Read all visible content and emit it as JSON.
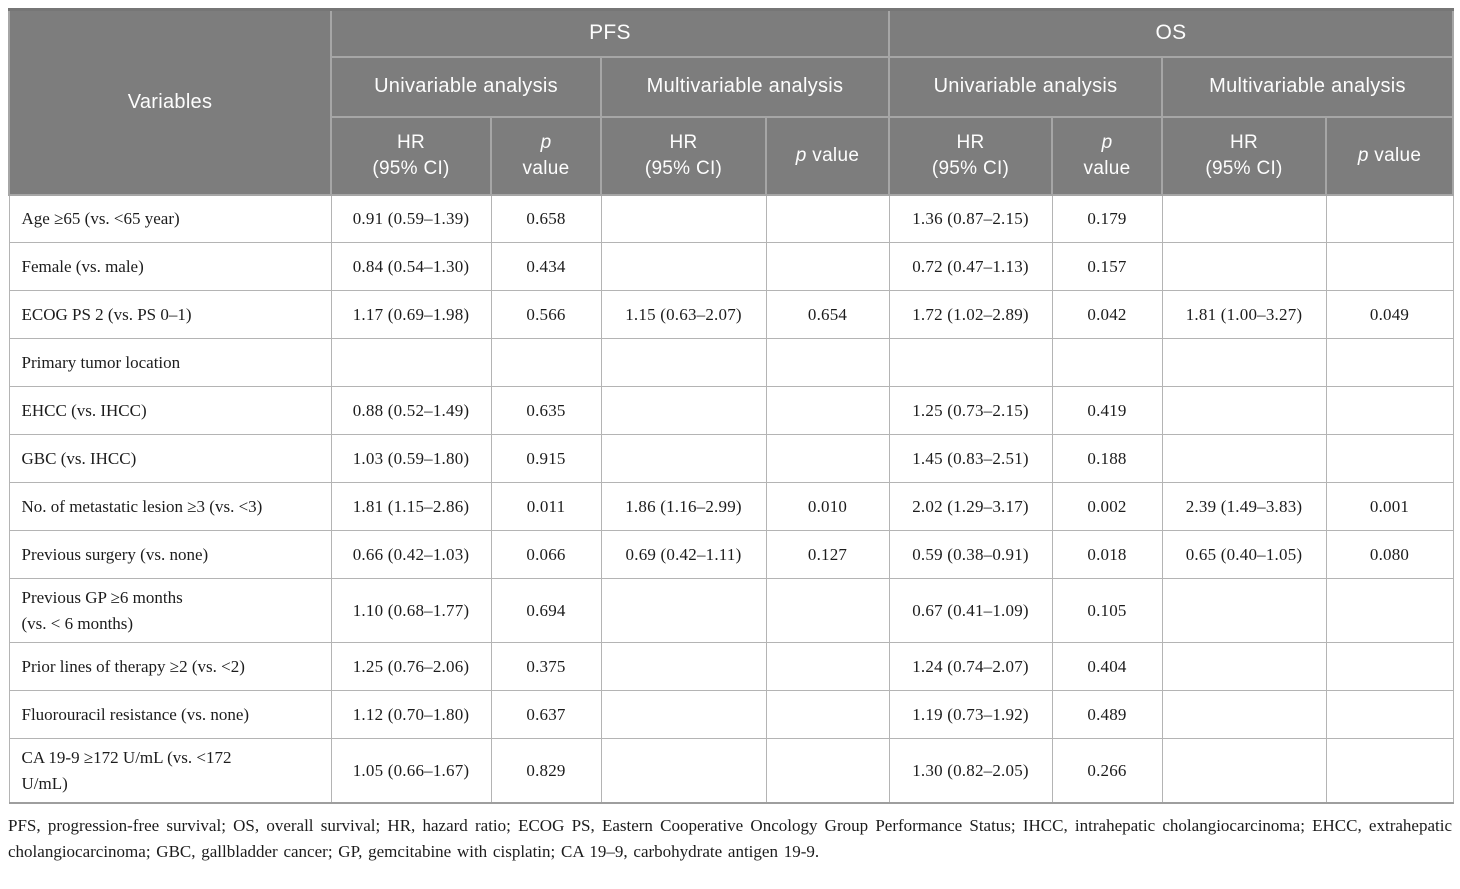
{
  "table": {
    "header": {
      "variables": "Variables",
      "pfs": "PFS",
      "os": "OS",
      "univariable": "Univariable analysis",
      "multivariable": "Multivariable analysis",
      "hr": "HR",
      "ci": "(95% CI)",
      "p": "p",
      "value": "value"
    },
    "rows": [
      {
        "cells": [
          "Age ≥65 (vs. <65 year)",
          "0.91 (0.59–1.39)",
          "0.658",
          "",
          "",
          "1.36 (0.87–2.15)",
          "0.179",
          "",
          ""
        ]
      },
      {
        "cells": [
          "Female (vs. male)",
          "0.84 (0.54–1.30)",
          "0.434",
          "",
          "",
          "0.72 (0.47–1.13)",
          "0.157",
          "",
          ""
        ]
      },
      {
        "cells": [
          "ECOG PS 2 (vs. PS 0–1)",
          "1.17 (0.69–1.98)",
          "0.566",
          "1.15 (0.63–2.07)",
          "0.654",
          "1.72 (1.02–2.89)",
          "0.042",
          "1.81 (1.00–3.27)",
          "0.049"
        ]
      },
      {
        "cells": [
          "Primary tumor location",
          "",
          "",
          "",
          "",
          "",
          "",
          "",
          ""
        ]
      },
      {
        "cells": [
          "EHCC (vs. IHCC)",
          "0.88 (0.52–1.49)",
          "0.635",
          "",
          "",
          "1.25 (0.73–2.15)",
          "0.419",
          "",
          ""
        ]
      },
      {
        "cells": [
          "GBC (vs. IHCC)",
          "1.03 (0.59–1.80)",
          "0.915",
          "",
          "",
          "1.45 (0.83–2.51)",
          "0.188",
          "",
          ""
        ]
      },
      {
        "cells": [
          "No. of metastatic lesion ≥3 (vs. <3)",
          "1.81 (1.15–2.86)",
          "0.011",
          "1.86 (1.16–2.99)",
          "0.010",
          "2.02 (1.29–3.17)",
          "0.002",
          "2.39 (1.49–3.83)",
          "0.001"
        ]
      },
      {
        "cells": [
          "Previous surgery (vs. none)",
          "0.66 (0.42–1.03)",
          "0.066",
          "0.69 (0.42–1.11)",
          "0.127",
          "0.59 (0.38–0.91)",
          "0.018",
          "0.65 (0.40–1.05)",
          "0.080"
        ]
      },
      {
        "cells": [
          "Previous GP ≥6 months\n(vs. < 6 months)",
          "1.10 (0.68–1.77)",
          "0.694",
          "",
          "",
          "0.67 (0.41–1.09)",
          "0.105",
          "",
          ""
        ]
      },
      {
        "cells": [
          "Prior lines of therapy ≥2 (vs. <2)",
          "1.25 (0.76–2.06)",
          "0.375",
          "",
          "",
          "1.24 (0.74–2.07)",
          "0.404",
          "",
          ""
        ]
      },
      {
        "cells": [
          "Fluorouracil resistance (vs. none)",
          "1.12 (0.70–1.80)",
          "0.637",
          "",
          "",
          "1.19 (0.73–1.92)",
          "0.489",
          "",
          ""
        ]
      },
      {
        "cells": [
          "CA 19-9 ≥172 U/mL (vs. <172\nU/mL)",
          "1.05 (0.66–1.67)",
          "0.829",
          "",
          "",
          "1.30 (0.82–2.05)",
          "0.266",
          "",
          ""
        ]
      }
    ]
  },
  "footnote": "PFS, progression-free survival; OS, overall survival; HR, hazard ratio; ECOG PS, Eastern Cooperative Oncology Group Performance Status; IHCC, intrahepatic cholangiocarcinoma; EHCC, extrahepatic cholangiocarcinoma; GBC, gallbladder cancer; GP, gemcitabine with cisplatin; CA 19–9, carbohydrate antigen 19-9."
}
